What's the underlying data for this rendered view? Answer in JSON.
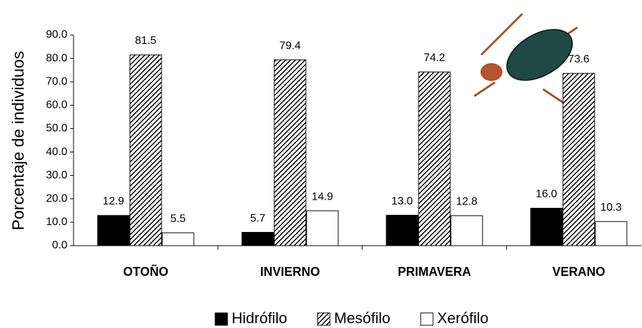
{
  "chart_data": {
    "type": "bar",
    "y_label": "Porcentaje de individuos",
    "categories": [
      "OTOÑO",
      "INVIERNO",
      "PRIMAVERA",
      "VERANO"
    ],
    "series": [
      {
        "name": "Hidrófilo",
        "color": "#000000",
        "values": [
          12.9,
          5.7,
          13.0,
          16.0
        ],
        "value_labels": [
          "12.9",
          "5.7",
          "13.0",
          "16.0"
        ]
      },
      {
        "name": "Mesófilo",
        "color": "hatch",
        "values": [
          81.5,
          79.4,
          74.2,
          73.6
        ],
        "value_labels": [
          "81.5",
          "79.4",
          "74.2",
          "73.6"
        ]
      },
      {
        "name": "Xerófilo",
        "color": "#ffffff",
        "values": [
          5.5,
          14.9,
          12.8,
          10.3
        ],
        "value_labels": [
          "5.5",
          "14.9",
          "12.8",
          "10.3"
        ]
      }
    ],
    "ylim": [
      0,
      90
    ],
    "yticks": [
      {
        "value": 0,
        "label": "0.0"
      },
      {
        "value": 10,
        "label": "10.0"
      },
      {
        "value": 20,
        "label": "20.0"
      },
      {
        "value": 30,
        "label": "30.0"
      },
      {
        "value": 40,
        "label": "40.0"
      },
      {
        "value": 50,
        "label": "50.0"
      },
      {
        "value": 60,
        "label": "60.0"
      },
      {
        "value": 70,
        "label": "70.0"
      },
      {
        "value": 80,
        "label": "80.0"
      },
      {
        "value": 90,
        "label": "90.0"
      }
    ],
    "grid": false
  }
}
